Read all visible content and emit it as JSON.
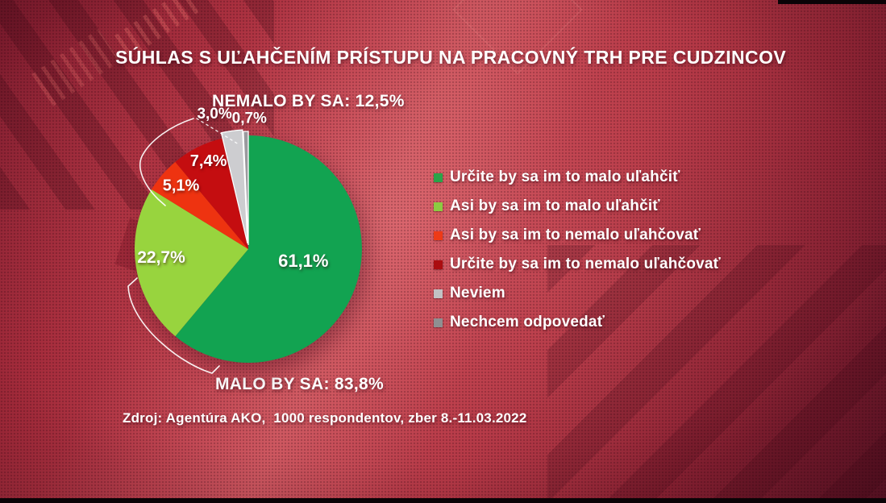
{
  "header": {
    "title": "SÚHLAS S UĽAHČENÍM PRÍSTUPU NA PRACOVNÝ TRH PRE CUDZINCOV"
  },
  "annotations": {
    "nemalo_label": "NEMALO BY SA: 12,5%",
    "malo_label": "MALO BY SA: 83,8%"
  },
  "source_line": "Zdroj: Agentúra AKO,  1000 respondentov, zber 8.-11.03.2022",
  "colors": {
    "background_accent": "#c0424f",
    "background_dark": "#5f1426",
    "text": "#ffffff"
  },
  "chart_data": {
    "type": "pie",
    "title": "SÚHLAS S UĽAHČENÍM PRÍSTUPU NA PRACOVNÝ TRH PRE CUDZINCOV",
    "direction": "clockwise",
    "start_angle_deg": 0,
    "legend_position": "right",
    "groups": [
      {
        "name": "MALO BY SA",
        "total": 83.8
      },
      {
        "name": "NEMALO BY SA",
        "total": 12.5
      }
    ],
    "slices": [
      {
        "label": "Určite by sa im to malo uľahčiť",
        "value": 61.1,
        "display": "61,1%",
        "color": "#12a351",
        "legend_color": "#2aa449"
      },
      {
        "label": "Asi by sa im to malo uľahčiť",
        "value": 22.7,
        "display": "22,7%",
        "color": "#98d43e",
        "legend_color": "#8ccb42"
      },
      {
        "label": "Asi by sa im to nemalo uľahčovať",
        "value": 5.1,
        "display": "5,1%",
        "color": "#ee3310",
        "legend_color": "#ee3a17"
      },
      {
        "label": "Určite by sa im to nemalo uľahčovať",
        "value": 7.4,
        "display": "7,4%",
        "color": "#c40d10",
        "legend_color": "#ab0d10"
      },
      {
        "label": "Neviem",
        "value": 3.0,
        "display": "3,0%",
        "color": "#cdcdd0",
        "legend_color": "#c2c2c4"
      },
      {
        "label": "Nechcem odpovedať",
        "value": 0.7,
        "display": "0,7%",
        "color": "#9a9a9e",
        "legend_color": "#8f8f91"
      }
    ]
  }
}
